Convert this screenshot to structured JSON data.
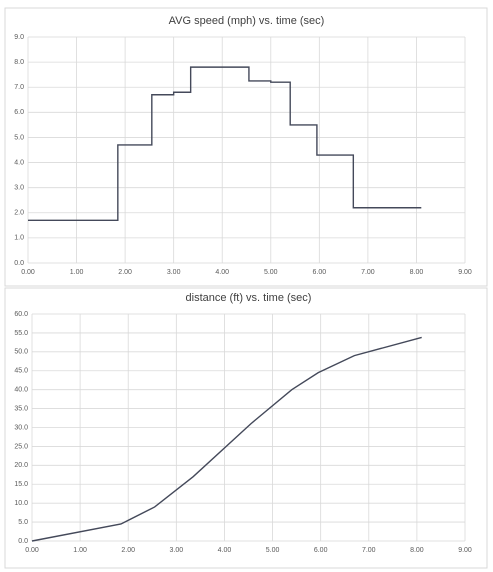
{
  "chart_data": [
    {
      "type": "line",
      "title": "AVG speed (mph) vs. time (sec)",
      "series": [
        {
          "color": "#44495a",
          "x": [
            0,
            1.85,
            1.85,
            2.55,
            2.55,
            3.0,
            3.0,
            3.35,
            3.35,
            4.55,
            4.55,
            5.0,
            5.0,
            5.4,
            5.4,
            5.95,
            5.95,
            6.7,
            6.7,
            8.1
          ],
          "values": [
            1.7,
            1.7,
            4.7,
            4.7,
            6.7,
            6.7,
            6.8,
            6.8,
            7.8,
            7.8,
            7.25,
            7.25,
            7.2,
            7.2,
            5.5,
            5.5,
            4.3,
            4.3,
            2.2,
            2.2
          ]
        }
      ],
      "xlim": [
        0,
        9
      ],
      "xticks": [
        {
          "value": 0,
          "label": "0.00"
        },
        {
          "value": 1,
          "label": "1.00"
        },
        {
          "value": 2,
          "label": "2.00"
        },
        {
          "value": 3,
          "label": "3.00"
        },
        {
          "value": 4,
          "label": "4.00"
        },
        {
          "value": 5,
          "label": "5.00"
        },
        {
          "value": 6,
          "label": "6.00"
        },
        {
          "value": 7,
          "label": "7.00"
        },
        {
          "value": 8,
          "label": "8.00"
        },
        {
          "value": 9,
          "label": "9.00"
        }
      ],
      "ylim": [
        0,
        9
      ],
      "yticks": [
        {
          "value": 0,
          "label": "0.0"
        },
        {
          "value": 1,
          "label": "1.0"
        },
        {
          "value": 2,
          "label": "2.0"
        },
        {
          "value": 3,
          "label": "3.0"
        },
        {
          "value": 4,
          "label": "4.0"
        },
        {
          "value": 5,
          "label": "5.0"
        },
        {
          "value": 6,
          "label": "6.0"
        },
        {
          "value": 7,
          "label": "7.0"
        },
        {
          "value": 8,
          "label": "8.0"
        },
        {
          "value": 9,
          "label": "9.0"
        }
      ],
      "grid": true
    },
    {
      "type": "line",
      "title": "distance (ft) vs. time (sec)",
      "series": [
        {
          "color": "#44495a",
          "x": [
            0,
            1.85,
            2.55,
            3.35,
            4.55,
            5.4,
            5.95,
            6.7,
            8.1
          ],
          "values": [
            0,
            4.5,
            9,
            17,
            31,
            40,
            44.5,
            49,
            53.8
          ]
        }
      ],
      "xlim": [
        0,
        9
      ],
      "xticks": [
        {
          "value": 0,
          "label": "0.00"
        },
        {
          "value": 1,
          "label": "1.00"
        },
        {
          "value": 2,
          "label": "2.00"
        },
        {
          "value": 3,
          "label": "3.00"
        },
        {
          "value": 4,
          "label": "4.00"
        },
        {
          "value": 5,
          "label": "5.00"
        },
        {
          "value": 6,
          "label": "6.00"
        },
        {
          "value": 7,
          "label": "7.00"
        },
        {
          "value": 8,
          "label": "8.00"
        },
        {
          "value": 9,
          "label": "9.00"
        }
      ],
      "ylim": [
        0,
        60
      ],
      "yticks": [
        {
          "value": 0,
          "label": "0.0"
        },
        {
          "value": 5,
          "label": "5.0"
        },
        {
          "value": 10,
          "label": "10.0"
        },
        {
          "value": 15,
          "label": "15.0"
        },
        {
          "value": 20,
          "label": "20.0"
        },
        {
          "value": 25,
          "label": "25.0"
        },
        {
          "value": 30,
          "label": "30.0"
        },
        {
          "value": 35,
          "label": "35.0"
        },
        {
          "value": 40,
          "label": "40.0"
        },
        {
          "value": 45,
          "label": "45.0"
        },
        {
          "value": 50,
          "label": "50.0"
        },
        {
          "value": 55,
          "label": "55.0"
        },
        {
          "value": 60,
          "label": "60.0"
        }
      ],
      "grid": true
    }
  ]
}
